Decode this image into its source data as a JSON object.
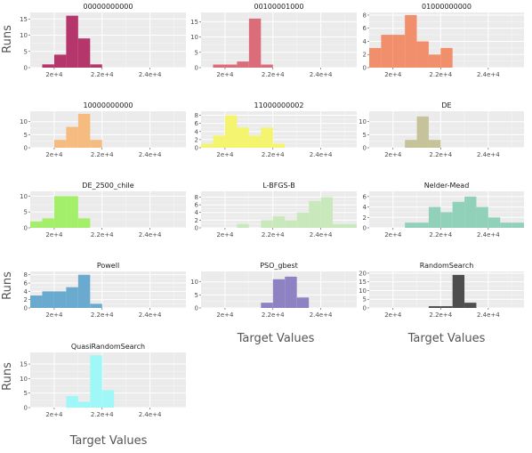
{
  "figure": {
    "ylabel": "Runs",
    "xlabel": "Target Values"
  },
  "chart_data": [
    {
      "type": "bar",
      "title": "00000000000",
      "color": "#b5366b",
      "xlim": [
        19000,
        25500
      ],
      "ylim": [
        0,
        17
      ],
      "x_ticks": [
        "2e+4",
        "2.2e+4",
        "2.4e+4"
      ],
      "y_ticks": [
        0,
        5,
        10,
        15
      ],
      "bin_start": 19000,
      "bin_width": 500,
      "values": [
        0,
        1,
        4,
        16,
        9,
        1,
        0,
        0,
        0,
        0,
        0,
        0,
        0
      ]
    },
    {
      "type": "bar",
      "title": "00100001000",
      "color": "#db6d7a",
      "xlim": [
        19000,
        25500
      ],
      "ylim": [
        0,
        18
      ],
      "x_ticks": [
        "2e+4",
        "2.2e+4",
        "2.4e+4"
      ],
      "y_ticks": [
        0,
        5,
        10,
        15
      ],
      "bin_start": 19000,
      "bin_width": 500,
      "values": [
        0,
        1,
        1,
        2,
        16,
        1,
        0,
        0,
        0,
        0,
        0,
        0,
        0
      ]
    },
    {
      "type": "bar",
      "title": "01000000000",
      "color": "#f18f6c",
      "xlim": [
        19000,
        25500
      ],
      "ylim": [
        0,
        8.4
      ],
      "x_ticks": [
        "2e+4",
        "2.2e+4",
        "2.4e+4"
      ],
      "y_ticks": [
        0,
        2,
        4,
        6,
        8
      ],
      "bin_start": 19000,
      "bin_width": 500,
      "values": [
        3,
        5,
        5,
        8,
        4,
        2,
        3,
        0,
        0,
        0,
        0,
        0,
        0
      ]
    },
    {
      "type": "bar",
      "title": "10000000000",
      "color": "#f5bb7f",
      "xlim": [
        19000,
        25500
      ],
      "ylim": [
        0,
        14
      ],
      "x_ticks": [
        "2e+4",
        "2.2e+4",
        "2.4e+4"
      ],
      "y_ticks": [
        0,
        5,
        10
      ],
      "bin_start": 19000,
      "bin_width": 500,
      "values": [
        0,
        0,
        3,
        8,
        13,
        3,
        0,
        0,
        0,
        0,
        0,
        0,
        0
      ]
    },
    {
      "type": "bar",
      "title": "11000000002",
      "color": "#f4f46e",
      "xlim": [
        19000,
        25500
      ],
      "ylim": [
        0,
        9
      ],
      "x_ticks": [
        "2e+4",
        "2.2e+4",
        "2.4e+4"
      ],
      "y_ticks": [
        0,
        2,
        4,
        6,
        8
      ],
      "bin_start": 19000,
      "bin_width": 500,
      "values": [
        1,
        3,
        8,
        5,
        3,
        5,
        1,
        0,
        0,
        0,
        0,
        0,
        0
      ]
    },
    {
      "type": "bar",
      "title": "DE",
      "color": "#c6c39a",
      "xlim": [
        19000,
        25500
      ],
      "ylim": [
        0,
        14
      ],
      "x_ticks": [
        "2e+4",
        "2.2e+4",
        "2.4e+4"
      ],
      "y_ticks": [
        0,
        5,
        10
      ],
      "bin_start": 19000,
      "bin_width": 500,
      "values": [
        0,
        0,
        0,
        3,
        12,
        3,
        0,
        0,
        0,
        0,
        0,
        0,
        0
      ]
    },
    {
      "type": "bar",
      "title": "DE_2500_chile",
      "color": "#a4ef6a",
      "xlim": [
        19000,
        25500
      ],
      "ylim": [
        0,
        11.5
      ],
      "x_ticks": [
        "2e+4",
        "2.2e+4",
        "2.4e+4"
      ],
      "y_ticks": [
        0,
        5,
        10
      ],
      "bin_start": 19000,
      "bin_width": 500,
      "values": [
        2,
        3,
        10,
        10,
        3,
        0,
        0,
        0,
        0,
        0,
        0,
        0,
        0
      ]
    },
    {
      "type": "bar",
      "title": "L-BFGS-B",
      "color": "#c9e9bd",
      "xlim": [
        19000,
        25500
      ],
      "ylim": [
        0,
        9.5
      ],
      "x_ticks": [
        "2e+4",
        "2.2e+4",
        "2.4e+4"
      ],
      "y_ticks": [
        0,
        2,
        4,
        6,
        8
      ],
      "bin_start": 19000,
      "bin_width": 500,
      "values": [
        0,
        0,
        0,
        1,
        0,
        2,
        3,
        2,
        4,
        7,
        8,
        1,
        1
      ]
    },
    {
      "type": "bar",
      "title": "Nelder-Mead",
      "color": "#92d1b9",
      "xlim": [
        19000,
        25500
      ],
      "ylim": [
        0,
        7
      ],
      "x_ticks": [
        "2e+4",
        "2.2e+4",
        "2.4e+4"
      ],
      "y_ticks": [
        0,
        2,
        4,
        6
      ],
      "bin_start": 19000,
      "bin_width": 500,
      "values": [
        0,
        0,
        0,
        1,
        1,
        4,
        3,
        5,
        6,
        4,
        2,
        1,
        1
      ]
    },
    {
      "type": "bar",
      "title": "Powell",
      "color": "#6aaacf",
      "xlim": [
        19000,
        25500
      ],
      "ylim": [
        0,
        8.8
      ],
      "x_ticks": [
        "2e+4",
        "2.2e+4",
        "2.4e+4"
      ],
      "y_ticks": [
        0,
        2,
        4,
        6,
        8
      ],
      "bin_start": 19000,
      "bin_width": 500,
      "values": [
        3,
        4,
        4,
        5,
        8,
        1,
        0,
        0,
        0,
        0,
        0,
        0,
        0
      ]
    },
    {
      "type": "bar",
      "title": "PSO_gbest",
      "color": "#8f82c2",
      "xlim": [
        19000,
        25500
      ],
      "ylim": [
        0,
        14
      ],
      "x_ticks": [
        "2e+4",
        "2.2e+4",
        "2.4e+4"
      ],
      "y_ticks": [
        0,
        5,
        10
      ],
      "bin_start": 19000,
      "bin_width": 500,
      "values": [
        0,
        0,
        0,
        0,
        0,
        2,
        11,
        12,
        4,
        0,
        0,
        0,
        0
      ]
    },
    {
      "type": "bar",
      "title": "RandomSearch",
      "color": "#4e4e4e",
      "xlim": [
        19000,
        25500
      ],
      "ylim": [
        0,
        21
      ],
      "x_ticks": [
        "2e+4",
        "2.2e+4",
        "2.4e+4"
      ],
      "y_ticks": [
        0,
        5,
        10,
        15,
        20
      ],
      "bin_start": 19000,
      "bin_width": 500,
      "values": [
        0,
        0,
        0,
        0,
        0,
        1,
        1,
        19,
        3,
        0,
        0,
        0,
        0
      ]
    },
    {
      "type": "bar",
      "title": "QuasiRandomSearch",
      "color": "#9ff7f7",
      "xlim": [
        19000,
        25500
      ],
      "ylim": [
        0,
        19
      ],
      "x_ticks": [
        "2e+4",
        "2.2e+4",
        "2.4e+4"
      ],
      "y_ticks": [
        0,
        5,
        10,
        15
      ],
      "bin_start": 19000,
      "bin_width": 500,
      "values": [
        0,
        0,
        0,
        4,
        2,
        18,
        6,
        0,
        0,
        0,
        0,
        0,
        0
      ]
    }
  ]
}
